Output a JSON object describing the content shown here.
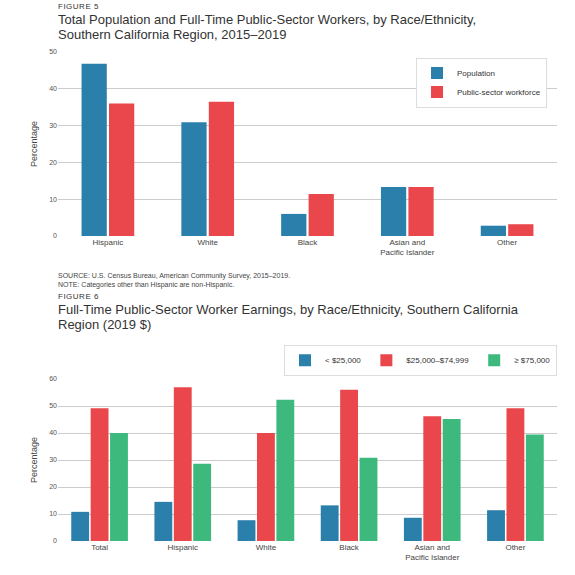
{
  "chart_data": [
    {
      "type": "bar",
      "figure_label": "FIGURE 5",
      "title": "Total Population and Full-Time Public-Sector Workers, by Race/Ethnicity, Southern California Region, 2015–2019",
      "y_label": "Percentage",
      "categories": [
        "Hispanic",
        "White",
        "Black",
        "Asian and Pacific Islander",
        "Other"
      ],
      "series": [
        {
          "name": "Population",
          "color": "#2b7fab",
          "values": [
            46.8,
            30.9,
            6.0,
            13.3,
            2.8
          ]
        },
        {
          "name": "Public-sector workforce",
          "color": "#e9474b",
          "values": [
            36.0,
            36.5,
            11.4,
            13.3,
            3.2
          ]
        }
      ],
      "ylim": [
        0,
        50
      ],
      "yticks": [
        0,
        10,
        20,
        30,
        40,
        50
      ],
      "grid": true,
      "legend": "top right",
      "source": "SOURCE: U.S. Census Bureau, American Community Survey, 2015–2019.",
      "note": "NOTE: Categories other than Hispanic are non-Hispanic."
    },
    {
      "type": "bar",
      "figure_label": "FIGURE 6",
      "title": "Full-Time Public-Sector Worker Earnings, by Race/Ethnicity, Southern California Region (2019 $)",
      "y_label": "Percentage",
      "categories": [
        "Total",
        "Hispanic",
        "White",
        "Black",
        "Asian and Pacific Islander",
        "Other"
      ],
      "series": [
        {
          "name": "< $25,000",
          "color": "#2b7fab",
          "values": [
            10.8,
            14.5,
            7.7,
            13.2,
            8.6,
            11.4
          ]
        },
        {
          "name": "$25,000–$74,999",
          "color": "#e9474b",
          "values": [
            49.2,
            56.9,
            40.0,
            56.0,
            46.2,
            49.2
          ]
        },
        {
          "name": "≥ $75,000",
          "color": "#3db97d",
          "values": [
            40.0,
            28.6,
            52.3,
            30.8,
            45.2,
            39.4
          ]
        }
      ],
      "ylim": [
        0,
        60
      ],
      "yticks": [
        0,
        10,
        20,
        30,
        40,
        50,
        60
      ],
      "grid": true,
      "legend": "top right"
    }
  ]
}
